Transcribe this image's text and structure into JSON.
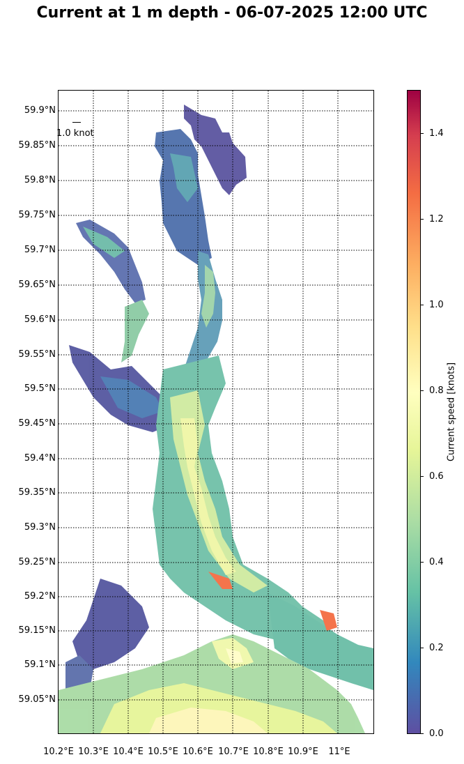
{
  "title": "Current at 1 m depth - 06-07-2025 12:00 UTC",
  "scale": {
    "label": "1.0 knot"
  },
  "axes": {
    "x_ticks": [
      "10.2°E",
      "10.3°E",
      "10.4°E",
      "10.5°E",
      "10.6°E",
      "10.7°E",
      "10.8°E",
      "10.9°E",
      "11°E"
    ],
    "y_ticks": [
      "59.9°N",
      "59.85°N",
      "59.8°N",
      "59.75°N",
      "59.7°N",
      "59.65°N",
      "59.6°N",
      "59.55°N",
      "59.5°N",
      "59.45°N",
      "59.4°N",
      "59.35°N",
      "59.3°N",
      "59.25°N",
      "59.2°N",
      "59.15°N",
      "59.1°N",
      "59.05°N"
    ],
    "x_values": [
      10.2,
      10.3,
      10.4,
      10.5,
      10.6,
      10.7,
      10.8,
      10.9,
      11.0
    ],
    "y_values": [
      59.9,
      59.85,
      59.8,
      59.75,
      59.7,
      59.65,
      59.6,
      59.55,
      59.5,
      59.45,
      59.4,
      59.35,
      59.3,
      59.25,
      59.2,
      59.15,
      59.1,
      59.05
    ],
    "lon_range": [
      10.2,
      11.1
    ],
    "lat_range": [
      59.0,
      59.93
    ],
    "grid": "dotted"
  },
  "colorbar": {
    "label": "Current speed [knots]",
    "ticks": [
      "0.0",
      "0.2",
      "0.4",
      "0.6",
      "0.8",
      "1.0",
      "1.2",
      "1.4"
    ],
    "tick_values": [
      0.0,
      0.2,
      0.4,
      0.6,
      0.8,
      1.0,
      1.2,
      1.4
    ],
    "range": [
      0.0,
      1.5
    ],
    "colormap": "Spectral_r"
  },
  "colors": {
    "low": "#5e4fa2",
    "mid": "#66c2a5",
    "midhigh": "#e6f598",
    "high": "#9e0142"
  }
}
